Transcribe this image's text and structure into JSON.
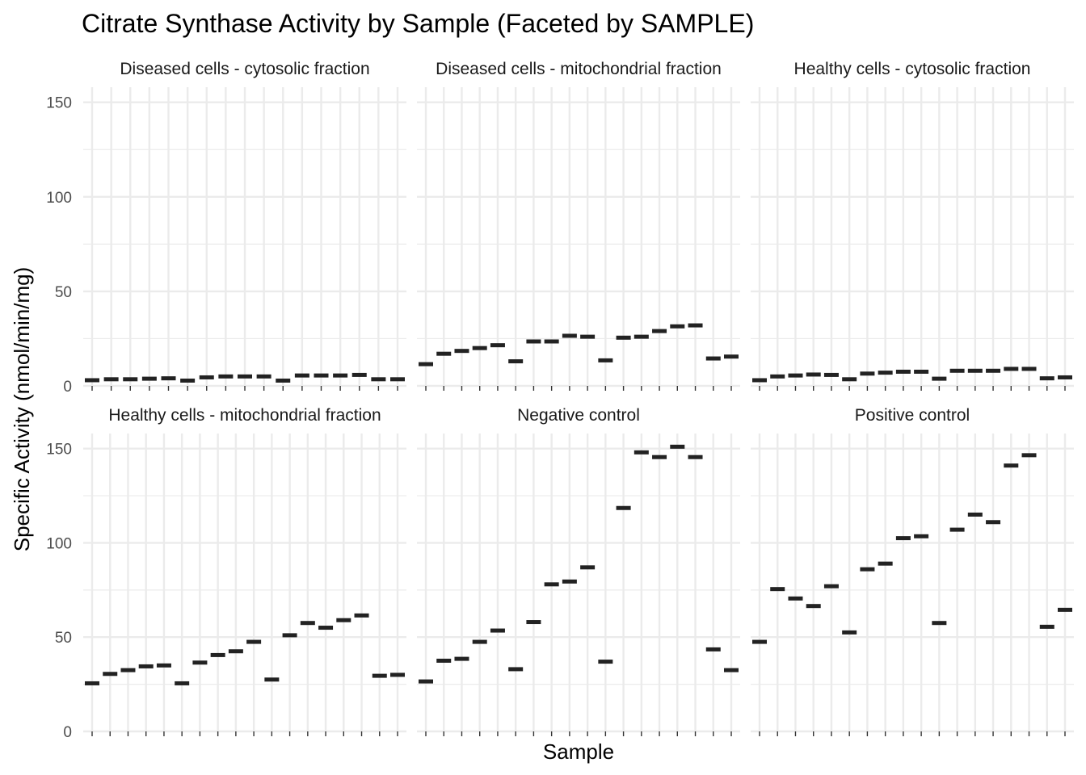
{
  "chart_data": {
    "type": "scatter",
    "title": "Citrate Synthase Activity by Sample (Faceted by SAMPLE)",
    "xlabel": "Sample",
    "ylabel": "Specific Activity (nmol/min/mg)",
    "ylim": [
      0,
      158
    ],
    "yticks": [
      "0",
      "50",
      "100",
      "150"
    ],
    "grid": true,
    "marker": "crossbar",
    "mark_color": "#222222",
    "grid_color": "#ebebeb",
    "facets": [
      {
        "name": "Diseased cells - cytosolic fraction",
        "values": [
          3,
          3.5,
          3.5,
          3.8,
          4,
          2.8,
          4.5,
          5,
          5,
          5,
          2.8,
          5.5,
          5.5,
          5.5,
          5.8,
          3.5,
          3.5
        ]
      },
      {
        "name": "Diseased cells - mitochondrial fraction",
        "values": [
          11.5,
          17,
          18.5,
          20,
          21.5,
          13,
          23.5,
          23.5,
          26.5,
          26,
          13.5,
          25.5,
          26,
          29,
          31.5,
          32,
          14.5,
          15.5
        ]
      },
      {
        "name": "Healthy cells - cytosolic fraction",
        "values": [
          3,
          5,
          5.5,
          6,
          5.8,
          3.5,
          6.5,
          7,
          7.5,
          7.5,
          3.8,
          8,
          8,
          8,
          9,
          9,
          4,
          4.5
        ]
      },
      {
        "name": "Healthy cells - mitochondrial fraction",
        "values": [
          25.5,
          30.5,
          32.5,
          34.5,
          35,
          25.5,
          36.5,
          40.5,
          42.5,
          47.5,
          27.5,
          51,
          57.5,
          55,
          59,
          61.5,
          29.5,
          30
        ]
      },
      {
        "name": "Negative control",
        "values": [
          26.5,
          37.5,
          38.5,
          47.5,
          53.5,
          33,
          58,
          78,
          79.5,
          87,
          37,
          118.5,
          148,
          145.5,
          151,
          145.5,
          43.5,
          32.5
        ]
      },
      {
        "name": "Positive control",
        "values": [
          47.5,
          75.5,
          70.5,
          66.5,
          77,
          52.5,
          86,
          89,
          102.5,
          103.5,
          57.5,
          107,
          115,
          111,
          141,
          146.5,
          55.5,
          64.5
        ]
      }
    ]
  }
}
